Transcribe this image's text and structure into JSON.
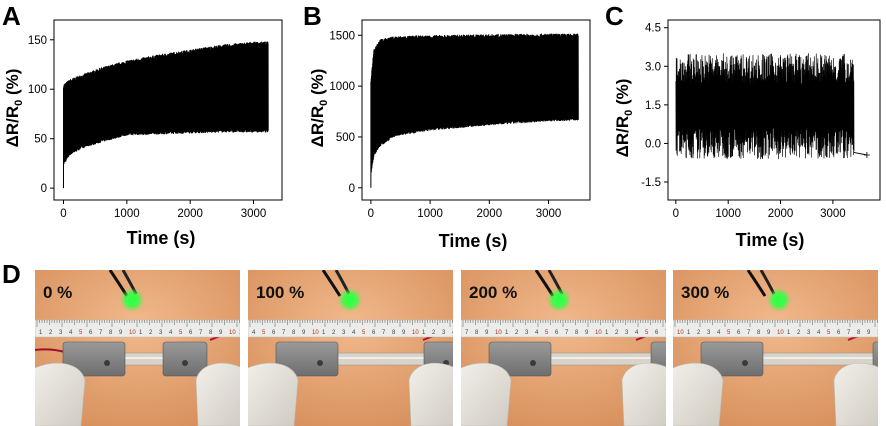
{
  "panel_labels": [
    "A",
    "B",
    "C",
    "D"
  ],
  "chart_data": [
    {
      "panel": "A",
      "type": "line",
      "xlabel": "Time (s)",
      "ylabel": "ΔR/R0 (%)",
      "ylabel_main": "ΔR/R",
      "ylabel_sub": "0",
      "ylabel_unit": " (%)",
      "xlim": [
        -150,
        3450
      ],
      "ylim": [
        -12,
        170
      ],
      "xticks": [
        0,
        1000,
        2000,
        3000
      ],
      "yticks": [
        0,
        50,
        100,
        150
      ],
      "grid": false,
      "series": [
        {
          "envelope_upper": [
            [
              0,
              103
            ],
            [
              100,
              108
            ],
            [
              300,
              113
            ],
            [
              600,
              120
            ],
            [
              1000,
              127
            ],
            [
              1500,
              133
            ],
            [
              2000,
              138
            ],
            [
              2500,
              143
            ],
            [
              3000,
              146
            ],
            [
              3230,
              146
            ]
          ],
          "envelope_lower": [
            [
              0,
              25
            ],
            [
              100,
              35
            ],
            [
              300,
              42
            ],
            [
              600,
              48
            ],
            [
              1000,
              55
            ],
            [
              1500,
              56
            ],
            [
              2000,
              57
            ],
            [
              2500,
              58
            ],
            [
              3000,
              58
            ],
            [
              3230,
              58
            ]
          ],
          "start": [
            0,
            0
          ]
        }
      ]
    },
    {
      "panel": "B",
      "type": "line",
      "xlabel": "Time (s)",
      "ylabel": "ΔR/R0 (%)",
      "ylabel_main": "ΔR/R",
      "ylabel_sub": "0",
      "ylabel_unit": " (%)",
      "xlim": [
        -150,
        3700
      ],
      "ylim": [
        -120,
        1650
      ],
      "xticks": [
        0,
        1000,
        2000,
        3000
      ],
      "yticks": [
        0,
        500,
        1000,
        1500
      ],
      "grid": false,
      "series": [
        {
          "envelope_upper": [
            [
              0,
              1050
            ],
            [
              50,
              1350
            ],
            [
              150,
              1440
            ],
            [
              400,
              1470
            ],
            [
              1000,
              1480
            ],
            [
              2000,
              1490
            ],
            [
              3000,
              1495
            ],
            [
              3500,
              1495
            ]
          ],
          "envelope_lower": [
            [
              0,
              150
            ],
            [
              50,
              330
            ],
            [
              150,
              420
            ],
            [
              400,
              520
            ],
            [
              1000,
              580
            ],
            [
              2000,
              630
            ],
            [
              3000,
              670
            ],
            [
              3500,
              680
            ]
          ],
          "start": [
            0,
            0
          ]
        }
      ]
    },
    {
      "panel": "C",
      "type": "line",
      "xlabel": "Time (s)",
      "ylabel": "ΔR/R0 (%)",
      "ylabel_main": "ΔR/R",
      "ylabel_sub": "0",
      "ylabel_unit": " (%)",
      "xlim": [
        -150,
        3900
      ],
      "ylim": [
        -2.2,
        4.8
      ],
      "xticks": [
        0,
        1000,
        2000,
        3000
      ],
      "yticks": [
        -1.5,
        0.0,
        1.5,
        3.0,
        4.5
      ],
      "ytick_labels": [
        "-1.5",
        "0.0",
        "1.5",
        "3.0",
        "4.5"
      ],
      "grid": false,
      "series": [
        {
          "band_upper_mean": 2.9,
          "band_upper_spread": 0.6,
          "band_lower_mean": 0.0,
          "band_lower_spread": 0.6,
          "x_end": 3400,
          "tail": [
            [
              3400,
              -0.35
            ],
            [
              3650,
              -0.45
            ]
          ]
        }
      ]
    }
  ],
  "photos": [
    {
      "label": "0 %",
      "strain": 0
    },
    {
      "label": "100 %",
      "strain": 100
    },
    {
      "label": "200 %",
      "strain": 200
    },
    {
      "label": "300 %",
      "strain": 300
    }
  ],
  "colors": {
    "trace": "#000000",
    "photo_background": "#e6a878",
    "ruler": "#ececea",
    "sensor_body": "#8a8a8a",
    "led": "#33ff44",
    "glove": "#e8e6df"
  }
}
